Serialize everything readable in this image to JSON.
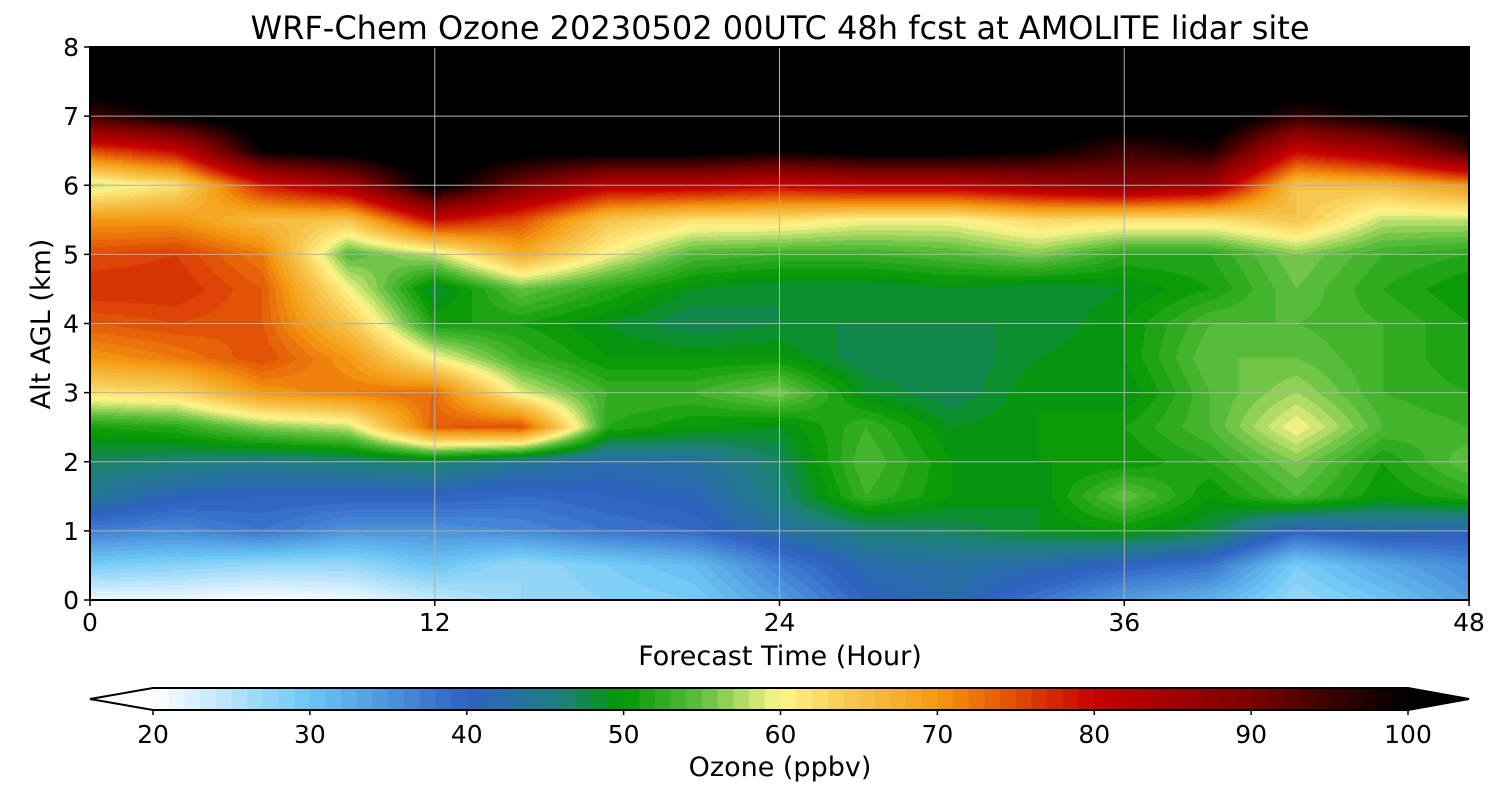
{
  "chart_data": {
    "type": "heatmap",
    "title": "WRF-Chem Ozone  20230502 00UTC 48h fcst at AMOLITE lidar site",
    "xlabel": "Forecast Time (Hour)",
    "ylabel": "Alt AGL (km)",
    "xlim": [
      0,
      48
    ],
    "ylim": [
      0,
      8
    ],
    "xticks": [
      0,
      12,
      24,
      36,
      48
    ],
    "yticks": [
      0,
      1,
      2,
      3,
      4,
      5,
      6,
      7,
      8
    ],
    "grid": true,
    "x": [
      0,
      3,
      6,
      9,
      12,
      15,
      18,
      21,
      24,
      27,
      30,
      33,
      36,
      39,
      42,
      45,
      48
    ],
    "y": [
      0,
      0.5,
      1,
      1.5,
      2,
      2.5,
      3,
      3.5,
      4,
      4.5,
      5,
      5.5,
      6,
      6.5,
      7,
      7.5,
      8
    ],
    "values": [
      [
        21,
        21,
        20,
        21,
        24,
        27,
        28,
        29,
        34,
        40,
        42,
        38,
        34,
        32,
        27,
        30,
        34
      ],
      [
        29,
        28,
        27,
        27,
        30,
        27,
        29,
        31,
        37,
        42,
        43,
        42,
        40,
        38,
        29,
        33,
        36
      ],
      [
        37,
        36,
        38,
        35,
        35,
        36,
        38,
        39,
        43,
        46,
        47,
        49,
        50,
        48,
        40,
        42,
        41
      ],
      [
        44,
        41,
        40,
        40,
        40,
        39,
        40,
        41,
        46,
        53,
        50,
        49,
        55,
        50,
        54,
        50,
        52
      ],
      [
        47,
        46,
        45,
        46,
        47,
        44,
        42,
        43,
        47,
        54,
        50,
        50,
        50,
        52,
        56,
        51,
        55
      ],
      [
        51,
        52,
        56,
        58,
        74,
        75,
        52,
        50,
        49,
        53,
        49,
        50,
        51,
        54,
        60,
        54,
        53
      ],
      [
        62,
        63,
        70,
        72,
        73,
        59,
        53,
        53,
        56,
        49,
        47,
        50,
        49,
        54,
        57,
        53,
        52
      ],
      [
        70,
        72,
        75,
        70,
        60,
        53,
        50,
        50,
        50,
        47,
        47,
        49,
        50,
        55,
        55,
        53,
        51
      ],
      [
        74,
        75,
        74,
        65,
        51,
        51,
        49,
        47,
        48,
        48,
        48,
        48,
        50,
        54,
        54,
        53,
        51
      ],
      [
        77,
        77,
        74,
        60,
        48,
        55,
        52,
        49,
        48,
        48,
        49,
        48,
        49,
        51,
        55,
        52,
        50
      ],
      [
        75,
        76,
        72,
        54,
        58,
        68,
        60,
        54,
        53,
        53,
        54,
        56,
        52,
        52,
        56,
        53,
        52
      ],
      [
        70,
        70,
        66,
        65,
        80,
        75,
        65,
        62,
        62,
        60,
        60,
        63,
        62,
        62,
        65,
        58,
        58
      ],
      [
        58,
        62,
        78,
        85,
        102,
        90,
        82,
        82,
        80,
        82,
        82,
        85,
        88,
        85,
        65,
        66,
        70
      ],
      [
        75,
        80,
        100,
        102,
        104,
        102,
        102,
        102,
        100,
        102,
        102,
        100,
        95,
        98,
        80,
        85,
        95
      ],
      [
        95,
        100,
        104,
        104,
        104,
        104,
        104,
        104,
        104,
        104,
        104,
        104,
        104,
        104,
        96,
        100,
        104
      ],
      [
        104,
        104,
        104,
        104,
        104,
        104,
        104,
        104,
        104,
        104,
        104,
        104,
        104,
        104,
        104,
        104,
        104
      ],
      [
        104,
        104,
        104,
        104,
        104,
        104,
        104,
        104,
        104,
        104,
        104,
        104,
        104,
        104,
        104,
        104,
        104
      ]
    ],
    "colorbar": {
      "label": "Ozone  (ppbv)",
      "min": 20,
      "max": 100,
      "step": 1,
      "ticks": [
        20,
        30,
        40,
        50,
        60,
        70,
        80,
        90,
        100
      ],
      "extend": "both",
      "colors": [
        [
          20,
          "#ffffff"
        ],
        [
          30,
          "#6cc6f5"
        ],
        [
          40,
          "#2f62c4"
        ],
        [
          46,
          "#1d7f7c"
        ],
        [
          50,
          "#019801"
        ],
        [
          55,
          "#61c040"
        ],
        [
          60,
          "#fff58a"
        ],
        [
          65,
          "#f6c34b"
        ],
        [
          70,
          "#f49a10"
        ],
        [
          75,
          "#e04b05"
        ],
        [
          80,
          "#c80000"
        ],
        [
          90,
          "#7a0000"
        ],
        [
          100,
          "#000000"
        ]
      ]
    }
  }
}
